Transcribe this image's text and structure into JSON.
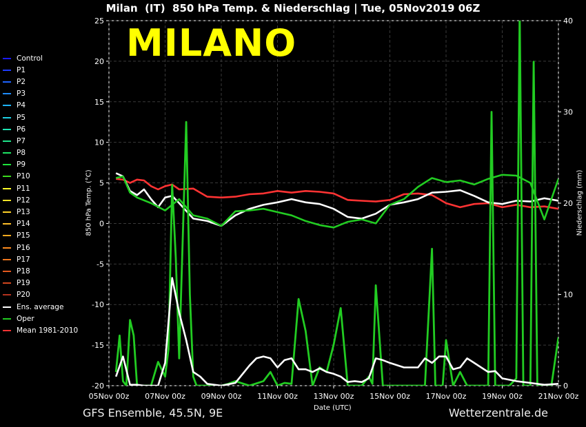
{
  "header": {
    "title": "Milan  (IT)  850 hPa Temp. & Niederschlag | Tue, 05Nov2019 06Z",
    "city": "MILANO"
  },
  "footer": {
    "model": "GFS Ensemble, 45.5N, 9E",
    "source": "Wetterzentrale.de"
  },
  "legend": [
    {
      "label": "Control",
      "color": "#1a1aff"
    },
    {
      "label": "P1",
      "color": "#1e3cff"
    },
    {
      "label": "P2",
      "color": "#1e64ff"
    },
    {
      "label": "P3",
      "color": "#1e8cff"
    },
    {
      "label": "P4",
      "color": "#1eb4ff"
    },
    {
      "label": "P5",
      "color": "#1ed2e6"
    },
    {
      "label": "P6",
      "color": "#1ee6b4"
    },
    {
      "label": "P7",
      "color": "#1ee68c"
    },
    {
      "label": "P8",
      "color": "#1ee664"
    },
    {
      "label": "P9",
      "color": "#1ee63c"
    },
    {
      "label": "P10",
      "color": "#3cdc1e"
    },
    {
      "label": "P11",
      "color": "#ffff28"
    },
    {
      "label": "P12",
      "color": "#ffe628"
    },
    {
      "label": "P13",
      "color": "#ffd228"
    },
    {
      "label": "P14",
      "color": "#ffbe28"
    },
    {
      "label": "P15",
      "color": "#ffaa1e"
    },
    {
      "label": "P16",
      "color": "#ff8c1e"
    },
    {
      "label": "P17",
      "color": "#f0781e"
    },
    {
      "label": "P18",
      "color": "#e65a1e"
    },
    {
      "label": "P19",
      "color": "#d2461e"
    },
    {
      "label": "P20",
      "color": "#b4321e"
    },
    {
      "label": "Ens. average",
      "color": "#ffffff"
    },
    {
      "label": "Oper",
      "color": "#22cc22"
    },
    {
      "label": "Mean 1981-2010",
      "color": "#ff3333"
    }
  ],
  "chart_data": {
    "type": "line",
    "xlabel": "Date (UTC)",
    "ylabel": "850 hPa Temp. (°C)",
    "y2label": "Niederschlag (mm)",
    "x_ticks": [
      "05Nov 00z",
      "07Nov 00z",
      "09Nov 00z",
      "11Nov 00z",
      "13Nov 00z",
      "15Nov 00z",
      "17Nov 00z",
      "19Nov 00z",
      "21Nov 00z"
    ],
    "x_range_days": [
      0,
      16
    ],
    "ylim": [
      -20,
      25
    ],
    "y_ticks": [
      25,
      20,
      15,
      10,
      5,
      0,
      -5,
      -10,
      -15,
      -20
    ],
    "y2lim": [
      0,
      40
    ],
    "y2_ticks": [
      40,
      30,
      20,
      10,
      0
    ],
    "grid": true,
    "legend_placement": "left",
    "series": [
      {
        "name": "Mean 1981-2010",
        "axis": "temp",
        "color": "#ff3333",
        "width": 2.6,
        "x": [
          0.25,
          0.5,
          0.75,
          1,
          1.25,
          1.5,
          1.75,
          2,
          2.25,
          2.5,
          3,
          3.5,
          4,
          4.5,
          5,
          5.5,
          6,
          6.5,
          7,
          7.5,
          8,
          8.5,
          9,
          9.5,
          10,
          10.5,
          11,
          11.5,
          12,
          12.5,
          13,
          13.5,
          14,
          14.5,
          15,
          15.5,
          16
        ],
        "y": [
          5.5,
          5.4,
          5.0,
          5.4,
          5.3,
          4.6,
          4.2,
          4.6,
          4.8,
          4.2,
          4.3,
          3.3,
          3.2,
          3.3,
          3.6,
          3.7,
          4.0,
          3.8,
          4.0,
          3.9,
          3.7,
          2.9,
          2.8,
          2.7,
          2.9,
          3.6,
          3.7,
          3.5,
          2.5,
          2.0,
          2.4,
          2.5,
          2.0,
          2.3,
          2.0,
          2.1,
          1.8
        ]
      },
      {
        "name": "Ens. average",
        "axis": "temp",
        "color": "#ffffff",
        "width": 2.6,
        "x": [
          0.25,
          0.5,
          0.75,
          1,
          1.25,
          1.5,
          1.75,
          2,
          2.25,
          2.5,
          3,
          3.5,
          4,
          4.5,
          5,
          5.5,
          6,
          6.5,
          7,
          7.5,
          8,
          8.5,
          9,
          9.5,
          10,
          10.5,
          11,
          11.5,
          12,
          12.5,
          13,
          13.5,
          14,
          14.5,
          15,
          15.5,
          16
        ],
        "y": [
          6.2,
          5.8,
          4.0,
          3.5,
          4.2,
          3.0,
          2.0,
          3.2,
          3.4,
          2.5,
          0.6,
          0.3,
          -0.3,
          1.0,
          1.8,
          2.3,
          2.6,
          3.0,
          2.6,
          2.4,
          1.8,
          0.8,
          0.6,
          1.2,
          2.3,
          2.6,
          3.0,
          3.8,
          3.9,
          4.1,
          3.4,
          2.6,
          2.4,
          2.8,
          2.7,
          3.1,
          2.8
        ]
      },
      {
        "name": "Oper",
        "axis": "temp",
        "color": "#22cc22",
        "width": 2.6,
        "x": [
          0.25,
          0.5,
          0.75,
          1,
          1.5,
          2,
          2.5,
          3,
          3.5,
          4,
          4.5,
          5,
          5.5,
          6,
          6.5,
          7,
          7.5,
          8,
          8.5,
          9,
          9.5,
          10,
          10.5,
          11,
          11.5,
          12,
          12.5,
          13,
          13.5,
          14,
          14.5,
          15,
          15.5,
          16
        ],
        "y": [
          5.6,
          5.8,
          3.8,
          3.2,
          2.5,
          1.6,
          3.0,
          1.0,
          0.6,
          -0.3,
          1.5,
          1.6,
          1.8,
          1.4,
          1.0,
          0.3,
          -0.2,
          -0.5,
          0.2,
          0.5,
          0.0,
          2.3,
          3.0,
          4.5,
          5.6,
          5.1,
          5.3,
          4.8,
          5.5,
          6.0,
          5.9,
          5.0,
          0.5,
          5.5
        ]
      },
      {
        "name": "Oper precip",
        "axis": "precip",
        "color": "#22cc22",
        "width": 2.8,
        "x": [
          0.25,
          0.38,
          0.5,
          0.62,
          0.75,
          0.88,
          1.0,
          1.12,
          1.25,
          1.38,
          1.5,
          1.75,
          2.0,
          2.12,
          2.25,
          2.38,
          2.5,
          2.75,
          2.88,
          3.0,
          3.12,
          3.25,
          3.5,
          4.0,
          4.25,
          4.5,
          5.0,
          5.5,
          5.75,
          6.0,
          6.25,
          6.5,
          6.75,
          7.0,
          7.25,
          7.5,
          7.75,
          8.0,
          8.25,
          8.5,
          9.0,
          9.25,
          9.38,
          9.5,
          9.75,
          10.0,
          10.5,
          11.0,
          11.25,
          11.5,
          11.62,
          11.75,
          11.88,
          12.0,
          12.25,
          12.5,
          12.75,
          13.0,
          13.25,
          13.5,
          13.62,
          13.75,
          13.88,
          14.0,
          14.12,
          14.25,
          14.38,
          14.5,
          14.62,
          14.75,
          14.88,
          15.0,
          15.12,
          15.25,
          15.5,
          15.75,
          16.0
        ],
        "y": [
          1.5,
          5.5,
          0.5,
          0,
          7.2,
          5.5,
          0,
          0,
          0,
          0,
          0,
          2.6,
          1.0,
          4.0,
          22.0,
          14.0,
          3.0,
          28.9,
          10.0,
          1.0,
          0,
          0,
          0,
          0,
          0.2,
          0.5,
          0,
          0.5,
          1.5,
          0,
          0.3,
          0.2,
          9.5,
          6.0,
          0,
          2.0,
          1.5,
          4.5,
          8.5,
          0,
          0,
          1.0,
          0.2,
          11.0,
          0,
          0,
          0,
          0,
          0,
          15.0,
          0,
          0,
          0,
          5.0,
          0,
          1.5,
          0,
          0,
          0,
          0,
          30.0,
          0,
          0,
          0,
          0,
          0,
          0.4,
          0.8,
          41.0,
          0,
          0,
          0,
          35.5,
          0,
          0,
          0,
          5.3
        ]
      },
      {
        "name": "Ens. average precip",
        "axis": "precip",
        "color": "#ffffff",
        "width": 2.6,
        "x": [
          0.25,
          0.5,
          0.75,
          1,
          1.25,
          1.5,
          1.75,
          2,
          2.25,
          2.5,
          2.75,
          3,
          3.25,
          3.5,
          4,
          4.5,
          5,
          5.25,
          5.5,
          5.75,
          6,
          6.25,
          6.5,
          6.75,
          7,
          7.25,
          7.5,
          7.75,
          8,
          8.25,
          8.5,
          8.75,
          9,
          9.25,
          9.5,
          9.75,
          10,
          10.5,
          11,
          11.25,
          11.5,
          11.75,
          12,
          12.25,
          12.5,
          12.75,
          13,
          13.25,
          13.5,
          13.75,
          14,
          14.5,
          15,
          15.5,
          16
        ],
        "y": [
          1.0,
          3.2,
          0.1,
          0.1,
          0,
          0,
          0,
          2.5,
          11.8,
          8.0,
          5.0,
          1.5,
          1.0,
          0.2,
          0,
          0.3,
          2.2,
          3.0,
          3.2,
          3.0,
          2.0,
          2.8,
          3.0,
          1.8,
          1.8,
          1.5,
          1.9,
          1.5,
          1.3,
          1.0,
          0.4,
          0.5,
          0.4,
          0.8,
          3.0,
          2.8,
          2.5,
          2.0,
          2.0,
          3.0,
          2.5,
          3.2,
          3.2,
          1.8,
          2.0,
          3.0,
          2.5,
          2.0,
          1.5,
          1.6,
          0.8,
          0.5,
          0.3,
          0.1,
          0.2
        ]
      }
    ]
  }
}
